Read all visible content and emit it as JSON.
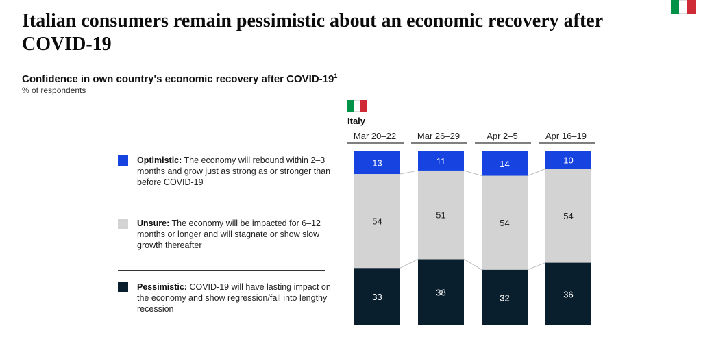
{
  "title": "Italian consumers remain pessimistic about an economic recovery after COVID-19",
  "subtitle": "Confidence in own country's economic recovery after COVID-19",
  "subtitle_footnote": "1",
  "unit_label": "% of respondents",
  "country": "Italy",
  "flag_colors": [
    "#009246",
    "#ffffff",
    "#ce2b37"
  ],
  "legend": [
    {
      "key": "optimistic",
      "label": "Optimistic:",
      "description": "The economy will rebound within 2–3 months and grow just as strong as or stronger than before COVID-19",
      "color": "#1744e0"
    },
    {
      "key": "unsure",
      "label": "Unsure:",
      "description": "The economy will be impacted for 6–12 months or longer and will stagnate or show slow growth thereafter",
      "color": "#d3d3d3"
    },
    {
      "key": "pessimistic",
      "label": "Pessimistic:",
      "description": "COVID-19 will have lasting impact on the economy and show regression/fall into lengthy recession",
      "color": "#0a1f2e"
    }
  ],
  "chart_data": {
    "type": "bar",
    "stacked": true,
    "title": "Confidence in own country's economic recovery after COVID-19",
    "ylabel": "% of respondents",
    "categories": [
      "Mar 20–22",
      "Mar 26–29",
      "Apr 2–5",
      "Apr 16–19"
    ],
    "series": [
      {
        "name": "Pessimistic",
        "values": [
          33,
          38,
          32,
          36
        ],
        "color": "#0a1f2e",
        "label_color": "#ffffff"
      },
      {
        "name": "Unsure",
        "values": [
          54,
          51,
          54,
          54
        ],
        "color": "#d3d3d3",
        "label_color": "#222222"
      },
      {
        "name": "Optimistic",
        "values": [
          13,
          11,
          14,
          10
        ],
        "color": "#1744e0",
        "label_color": "#ffffff"
      }
    ]
  }
}
